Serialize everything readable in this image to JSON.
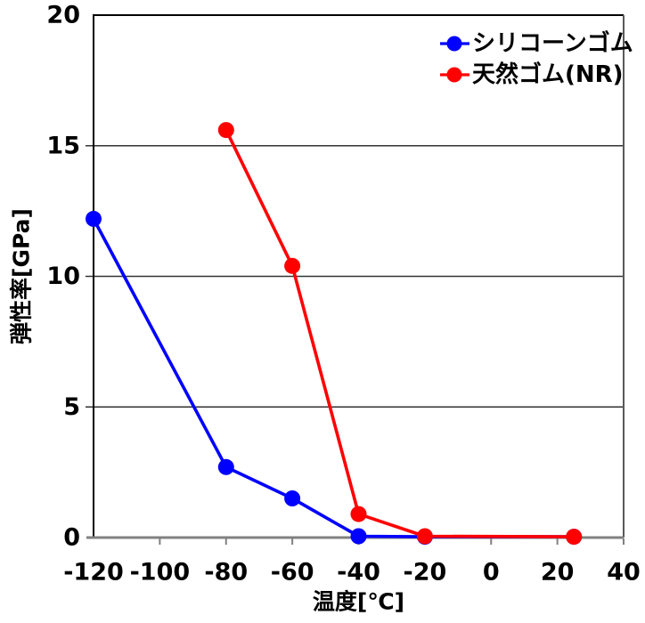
{
  "figure": {
    "background": "#ffffff"
  },
  "chart_data": {
    "type": "line",
    "title": "",
    "xlabel": "温度[℃]",
    "ylabel": "弾性率[GPa]",
    "xlim": [
      -120,
      40
    ],
    "ylim": [
      0,
      20
    ],
    "x_ticks": [
      -120,
      -100,
      -80,
      -60,
      -40,
      -20,
      0,
      20,
      40
    ],
    "y_ticks": [
      0,
      5,
      10,
      15,
      20
    ],
    "grid": "horizontal",
    "gridline_y_values": [
      5,
      10,
      15
    ],
    "legend": {
      "position": "top-right-inside",
      "entries": [
        {
          "label": "シリコーンゴム",
          "color": "#0000ff"
        },
        {
          "label": "天然ゴム(NR)",
          "color": "#ff0000"
        }
      ]
    },
    "series": [
      {
        "name": "シリコーンゴム",
        "key": "silicone-rubber",
        "color": "#0000ff",
        "marker": "circle",
        "points": [
          [
            -120,
            12.2
          ],
          [
            -80,
            2.7
          ],
          [
            -60,
            1.5
          ],
          [
            -40,
            0.05
          ],
          [
            -20,
            0.03
          ],
          [
            25,
            0.03
          ]
        ]
      },
      {
        "name": "天然ゴム(NR)",
        "key": "natural-rubber-nr",
        "color": "#ff0000",
        "marker": "circle",
        "points": [
          [
            -80,
            15.6
          ],
          [
            -60,
            10.4
          ],
          [
            -40,
            0.9
          ],
          [
            -20,
            0.05
          ],
          [
            25,
            0.03
          ]
        ]
      }
    ],
    "axis_colors": {
      "gridline": "#333333",
      "left_axis": "#000000",
      "top_border": "#000000",
      "bottom_axis": "#808080",
      "right_border": "#595959",
      "x_tick": "#808080",
      "y_tick": "#000000",
      "text": "#000000"
    }
  }
}
